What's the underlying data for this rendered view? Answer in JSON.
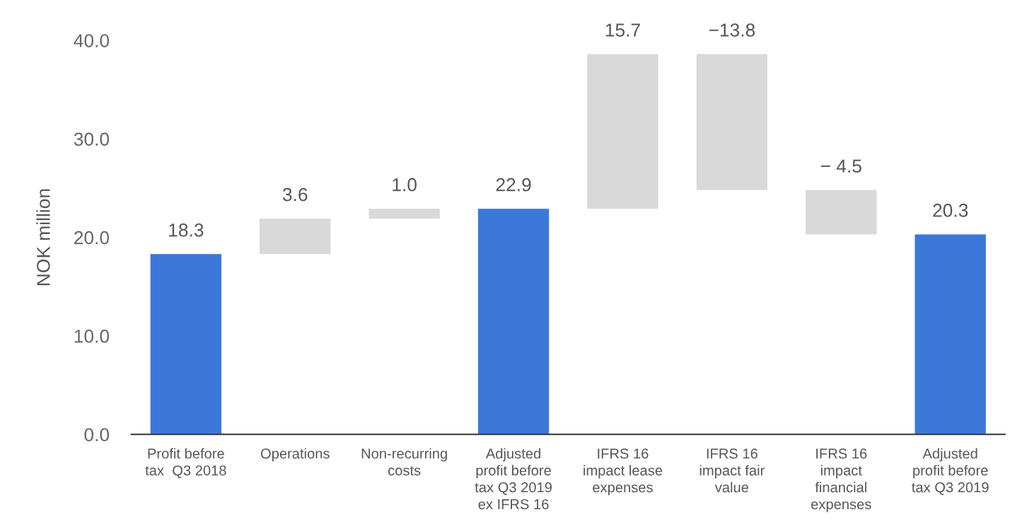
{
  "chart_data": {
    "type": "bar",
    "ylabel": "NOK million",
    "categories": [
      "Profit before\ntax  Q3 2018",
      "Operations",
      "Non-recurring\ncosts",
      "Adjusted\nprofit before\ntax Q3 2019\nex IFRS 16",
      "IFRS 16\nimpact lease\nexpenses",
      "IFRS 16\nimpact fair\nvalue",
      "IFRS 16\nimpact\nfinancial\nexpenses",
      "Adjusted\nprofit before\ntax Q3 2019"
    ],
    "values": [
      18.3,
      3.6,
      1.0,
      22.9,
      15.7,
      -13.8,
      -4.5,
      20.3
    ],
    "base": [
      0,
      18.3,
      21.9,
      0,
      22.9,
      38.6,
      24.8,
      0
    ],
    "colors": [
      "#3c78d8",
      "#d9d9d9",
      "#d9d9d9",
      "#3c78d8",
      "#d9d9d9",
      "#d9d9d9",
      "#d9d9d9",
      "#3c78d8"
    ],
    "value_labels": [
      "18.3",
      "3.6",
      "1.0",
      "22.9",
      "15.7",
      "−13.8",
      "− 4.5",
      "20.3"
    ],
    "ylim": [
      0,
      40
    ],
    "yticks": [
      {
        "value": 0,
        "label": "0.0"
      },
      {
        "value": 10,
        "label": "10.0"
      },
      {
        "value": 20,
        "label": "20.0"
      },
      {
        "value": 30,
        "label": "30.0"
      },
      {
        "value": 40,
        "label": "40.0"
      }
    ],
    "grid": false,
    "legend": false
  }
}
